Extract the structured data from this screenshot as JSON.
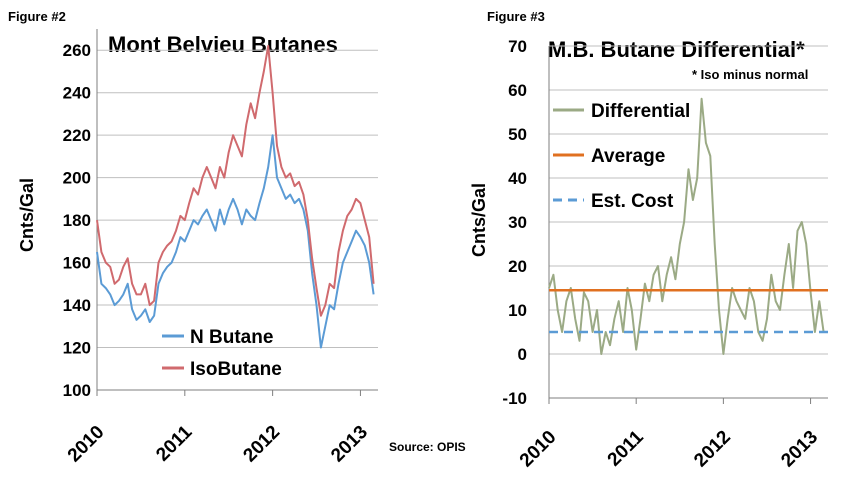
{
  "figures": [
    {
      "figure_label": "Figure #2",
      "chart_data": {
        "type": "line",
        "title": "Mont Belvieu Butanes",
        "ylabel": "Cnts/Gal",
        "xlabel": "",
        "ylim": [
          100,
          270
        ],
        "yticks": [
          100,
          120,
          140,
          160,
          180,
          200,
          220,
          240,
          260
        ],
        "xlim": [
          2010.0,
          2013.2
        ],
        "xticks": [
          "2010",
          "2011",
          "2012",
          "2013"
        ],
        "grid": true,
        "legend_position": "bottom-center",
        "series": [
          {
            "name": "N Butane",
            "color": "#5B9BD5",
            "x": [
              2010.0,
              2010.05,
              2010.1,
              2010.15,
              2010.2,
              2010.25,
              2010.3,
              2010.35,
              2010.4,
              2010.45,
              2010.5,
              2010.55,
              2010.6,
              2010.65,
              2010.7,
              2010.75,
              2010.8,
              2010.85,
              2010.9,
              2010.95,
              2011.0,
              2011.05,
              2011.1,
              2011.15,
              2011.2,
              2011.25,
              2011.3,
              2011.35,
              2011.4,
              2011.45,
              2011.5,
              2011.55,
              2011.6,
              2011.65,
              2011.7,
              2011.75,
              2011.8,
              2011.85,
              2011.9,
              2011.95,
              2012.0,
              2012.05,
              2012.1,
              2012.15,
              2012.2,
              2012.25,
              2012.3,
              2012.35,
              2012.4,
              2012.45,
              2012.5,
              2012.55,
              2012.6,
              2012.65,
              2012.7,
              2012.75,
              2012.8,
              2012.85,
              2012.9,
              2012.95,
              2013.0,
              2013.05,
              2013.1,
              2013.15
            ],
            "values": [
              165,
              150,
              148,
              145,
              140,
              142,
              145,
              150,
              138,
              133,
              135,
              138,
              132,
              135,
              150,
              155,
              158,
              160,
              165,
              172,
              170,
              175,
              180,
              178,
              182,
              185,
              180,
              175,
              185,
              178,
              185,
              190,
              185,
              178,
              185,
              182,
              180,
              188,
              195,
              205,
              220,
              200,
              195,
              190,
              192,
              188,
              190,
              185,
              175,
              155,
              140,
              120,
              130,
              140,
              138,
              150,
              160,
              165,
              170,
              175,
              172,
              168,
              160,
              145
            ]
          },
          {
            "name": "IsoButane",
            "color": "#D06A6E",
            "x": [
              2010.0,
              2010.05,
              2010.1,
              2010.15,
              2010.2,
              2010.25,
              2010.3,
              2010.35,
              2010.4,
              2010.45,
              2010.5,
              2010.55,
              2010.6,
              2010.65,
              2010.7,
              2010.75,
              2010.8,
              2010.85,
              2010.9,
              2010.95,
              2011.0,
              2011.05,
              2011.1,
              2011.15,
              2011.2,
              2011.25,
              2011.3,
              2011.35,
              2011.4,
              2011.45,
              2011.5,
              2011.55,
              2011.6,
              2011.65,
              2011.7,
              2011.75,
              2011.8,
              2011.85,
              2011.9,
              2011.95,
              2012.0,
              2012.05,
              2012.1,
              2012.15,
              2012.2,
              2012.25,
              2012.3,
              2012.35,
              2012.4,
              2012.45,
              2012.5,
              2012.55,
              2012.6,
              2012.65,
              2012.7,
              2012.75,
              2012.8,
              2012.85,
              2012.9,
              2012.95,
              2013.0,
              2013.05,
              2013.1,
              2013.15
            ],
            "values": [
              180,
              165,
              160,
              158,
              150,
              152,
              158,
              162,
              150,
              145,
              145,
              150,
              140,
              142,
              160,
              165,
              168,
              170,
              175,
              182,
              180,
              188,
              195,
              192,
              200,
              205,
              200,
              195,
              205,
              200,
              212,
              220,
              215,
              210,
              225,
              235,
              228,
              240,
              250,
              262,
              240,
              215,
              205,
              200,
              202,
              196,
              198,
              192,
              180,
              162,
              148,
              135,
              140,
              150,
              148,
              165,
              175,
              182,
              185,
              190,
              188,
              180,
              172,
              150
            ]
          }
        ]
      }
    },
    {
      "figure_label": "Figure #3",
      "chart_data": {
        "type": "line",
        "title": "M.B. Butane Differential*",
        "subtitle": "* Iso minus normal",
        "ylabel": "Cnts/Gal",
        "xlabel": "",
        "ylim": [
          -10,
          70
        ],
        "yticks": [
          -10,
          0,
          10,
          20,
          30,
          40,
          50,
          60,
          70
        ],
        "xlim": [
          2010.0,
          2013.2
        ],
        "xticks": [
          "2010",
          "2011",
          "2012",
          "2013"
        ],
        "grid": true,
        "legend_position": "top-left",
        "series": [
          {
            "name": "Differential",
            "color": "#9BAA85",
            "x": [
              2010.0,
              2010.05,
              2010.1,
              2010.15,
              2010.2,
              2010.25,
              2010.3,
              2010.35,
              2010.4,
              2010.45,
              2010.5,
              2010.55,
              2010.6,
              2010.65,
              2010.7,
              2010.75,
              2010.8,
              2010.85,
              2010.9,
              2010.95,
              2011.0,
              2011.05,
              2011.1,
              2011.15,
              2011.2,
              2011.25,
              2011.3,
              2011.35,
              2011.4,
              2011.45,
              2011.5,
              2011.55,
              2011.6,
              2011.65,
              2011.7,
              2011.75,
              2011.8,
              2011.85,
              2011.9,
              2011.95,
              2012.0,
              2012.05,
              2012.1,
              2012.15,
              2012.2,
              2012.25,
              2012.3,
              2012.35,
              2012.4,
              2012.45,
              2012.5,
              2012.55,
              2012.6,
              2012.65,
              2012.7,
              2012.75,
              2012.8,
              2012.85,
              2012.9,
              2012.95,
              2013.0,
              2013.05,
              2013.1,
              2013.15
            ],
            "values": [
              15,
              18,
              10,
              5,
              12,
              15,
              8,
              3,
              14,
              12,
              5,
              10,
              0,
              5,
              2,
              8,
              12,
              5,
              15,
              10,
              1,
              8,
              16,
              12,
              18,
              20,
              12,
              18,
              22,
              17,
              25,
              30,
              42,
              35,
              40,
              58,
              48,
              45,
              25,
              10,
              0,
              8,
              15,
              12,
              10,
              8,
              15,
              12,
              5,
              3,
              8,
              18,
              12,
              10,
              18,
              25,
              15,
              28,
              30,
              25,
              14,
              5,
              12,
              5
            ]
          },
          {
            "name": "Average",
            "color": "#E07020",
            "x": [
              2010.0,
              2013.2
            ],
            "values": [
              14.5,
              14.5
            ]
          },
          {
            "name": "Est. Cost",
            "color": "#5B9BD5",
            "dashed": true,
            "x": [
              2010.0,
              2013.2
            ],
            "values": [
              5,
              5
            ]
          }
        ]
      }
    }
  ],
  "source": "Source: OPIS"
}
